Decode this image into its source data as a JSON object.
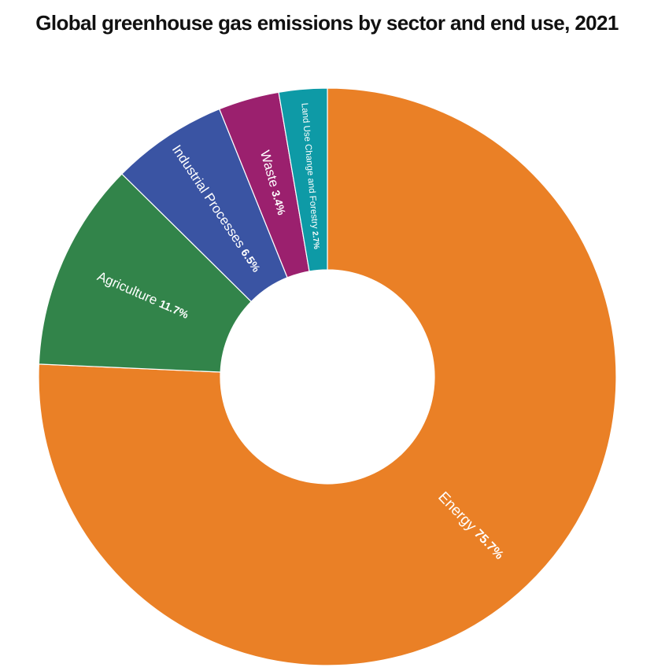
{
  "chart_data": {
    "type": "pie",
    "title": "Global greenhouse gas emissions by sector and end use, 2021",
    "slices": [
      {
        "label": "Energy",
        "value": 75.7,
        "value_label": "75.7%",
        "color": "#EA8026"
      },
      {
        "label": "Agriculture",
        "value": 11.7,
        "value_label": "11.7%",
        "color": "#32844A"
      },
      {
        "label": "Industrial Processes",
        "value": 6.5,
        "value_label": "6.5%",
        "color": "#3A54A3"
      },
      {
        "label": "Waste",
        "value": 3.4,
        "value_label": "3.4%",
        "color": "#9B206E"
      },
      {
        "label": "Land Use Change and Forestry",
        "value": 2.7,
        "value_label": "2.7%",
        "color": "#0E9AA6"
      }
    ],
    "hole": true,
    "start": "top",
    "direction": "clockwise",
    "legend": "none",
    "labels": "on slices"
  }
}
